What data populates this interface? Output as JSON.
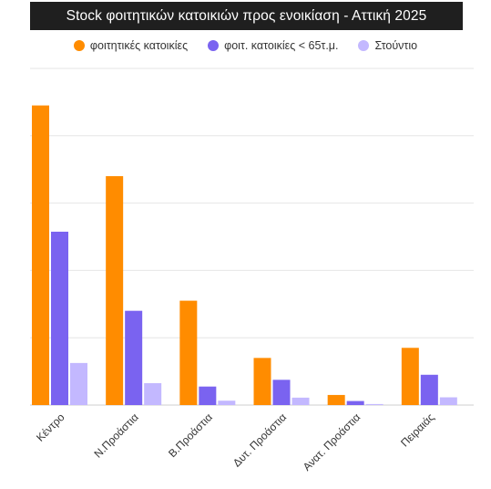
{
  "colors": {
    "primary": "#FF8C00",
    "secondary": "#7A63F0",
    "tertiary": "#C3B8FF",
    "grid": "#e6e6e6",
    "axis": "#cfcfcf",
    "label": "#333333"
  },
  "chart_data": {
    "type": "bar",
    "title": "Stock  φοιτητικών κατοικιών προς ενοικίαση - Αττική 2025",
    "legend_position": "top",
    "grid": true,
    "ylim": [
      0,
      100
    ],
    "categories": [
      "Κέντρο",
      "Ν.Προάστια",
      "Β.Προάστια",
      "Δυτ. Προάστια",
      "Ανατ. Προάστια",
      "Πειραιάς"
    ],
    "series": [
      {
        "name": "φοιτητικές κατοικίες",
        "color": "#FF8C00",
        "values": [
          89,
          68,
          31,
          14,
          3,
          17
        ]
      },
      {
        "name": "φοιτ. κατοικίες < 65τ.μ.",
        "color": "#7A63F0",
        "values": [
          51.5,
          28,
          5.5,
          7.5,
          1.2,
          9
        ]
      },
      {
        "name": "Στούντιο",
        "color": "#C3B8FF",
        "values": [
          12.5,
          6.5,
          1.3,
          2.2,
          0.3,
          2.3
        ]
      }
    ]
  }
}
